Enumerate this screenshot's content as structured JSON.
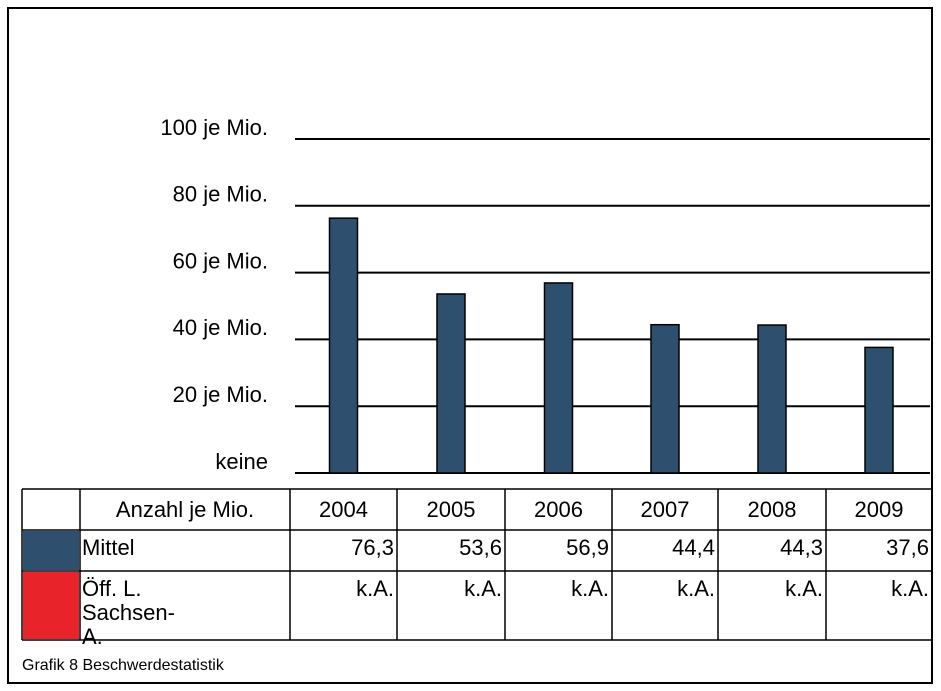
{
  "chart_data": {
    "type": "bar",
    "categories_label": "Anzahl je Mio.",
    "categories": [
      "2004",
      "2005",
      "2006",
      "2007",
      "2008",
      "2009"
    ],
    "series": [
      {
        "name": "Mittel",
        "color": "#2f4f6f",
        "values": [
          76.3,
          53.6,
          56.9,
          44.4,
          44.3,
          37.6
        ],
        "value_labels": [
          "76,3",
          "53,6",
          "56,9",
          "44,4",
          "44,3",
          "37,6"
        ]
      },
      {
        "name": "Öff. L. Sachsen-A.",
        "color": "#e8242a",
        "values": [
          null,
          null,
          null,
          null,
          null,
          null
        ],
        "value_labels": [
          "k.A.",
          "k.A.",
          "k.A.",
          "k.A.",
          "k.A.",
          "k.A."
        ]
      }
    ],
    "ylim": [
      0,
      100
    ],
    "yticks": [
      {
        "value": 0,
        "label": "keine"
      },
      {
        "value": 20,
        "label": "20 je Mio."
      },
      {
        "value": 40,
        "label": "40 je Mio."
      },
      {
        "value": 60,
        "label": "60 je Mio."
      },
      {
        "value": 80,
        "label": "80 je Mio."
      },
      {
        "value": 100,
        "label": "100 je Mio."
      }
    ],
    "grid": true,
    "caption": "Grafik 8 Beschwerdestatistik"
  }
}
